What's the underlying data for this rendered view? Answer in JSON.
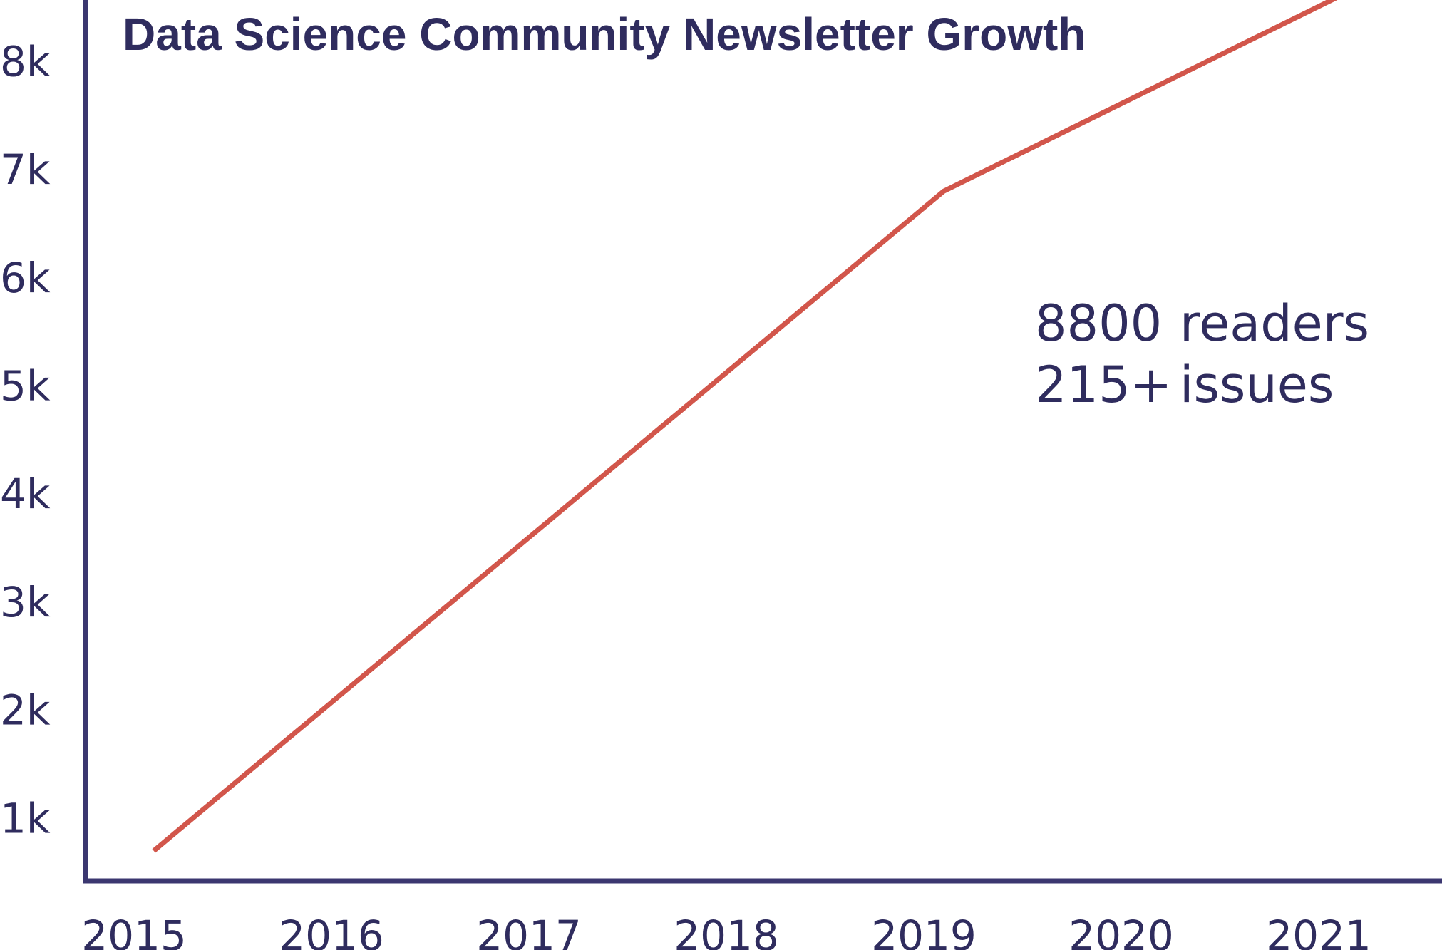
{
  "chart_data": {
    "type": "line",
    "title": "Data Science Community Newsletter Growth",
    "xlabel": "",
    "ylabel": "",
    "x": [
      2015,
      2016,
      2017,
      2018,
      2019,
      2020,
      2021
    ],
    "x_tick_labels": [
      "2015",
      "2016",
      "2017",
      "2018",
      "2019",
      "2020",
      "2021"
    ],
    "y_tick_values": [
      1000,
      2000,
      3000,
      4000,
      5000,
      6000,
      7000,
      8000
    ],
    "y_tick_labels": [
      "1k",
      "2k",
      "3k",
      "4k",
      "5k",
      "6k",
      "7k",
      "8k"
    ],
    "ylim": [
      0,
      8800
    ],
    "grid": false,
    "legend": "none",
    "series": [
      {
        "x": [
          2015.1,
          2019.1,
          2021.1
        ],
        "y": [
          700,
          6800,
          8600
        ]
      }
    ],
    "annotations": [
      {
        "number": "8800",
        "label": "readers"
      },
      {
        "number": "215+",
        "label": "issues"
      }
    ],
    "colors": {
      "line": "#d2564b",
      "axes": "#3b3770",
      "text": "#2f2c5e"
    }
  }
}
